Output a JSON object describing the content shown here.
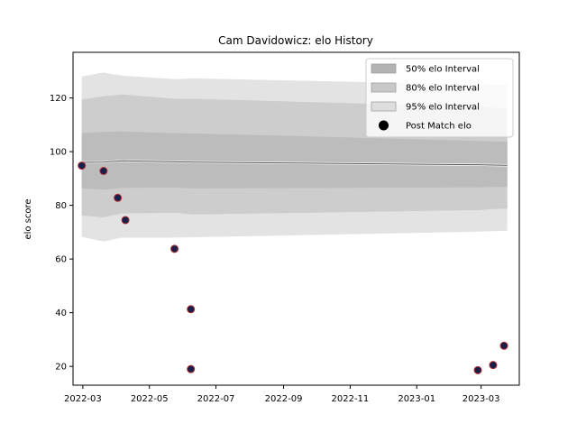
{
  "chart_data": {
    "type": "area",
    "title": "Cam Davidowicz: elo History",
    "xlabel": "",
    "ylabel": "elo score",
    "xlim": [
      "2022-02-20",
      "2023-04-05"
    ],
    "ylim": [
      13,
      137
    ],
    "grid": false,
    "legend_placement": "top-right",
    "x_ticks": [
      "2022-03",
      "2022-05",
      "2022-07",
      "2022-09",
      "2022-11",
      "2023-01",
      "2023-03"
    ],
    "y_ticks": [
      20,
      40,
      60,
      80,
      100,
      120
    ],
    "interval_x": [
      "2022-02-28",
      "2022-03-20",
      "2022-04-06",
      "2022-05-25",
      "2022-06-10",
      "2023-02-26",
      "2023-03-12",
      "2023-03-25"
    ],
    "series": [
      {
        "name": "95% elo Interval",
        "kind": "band",
        "color": "#e3e3e3",
        "lower": [
          68.3,
          66.5,
          68.0,
          68.0,
          68.1,
          70.2,
          70.4,
          70.5
        ],
        "upper": [
          128.0,
          129.5,
          128.3,
          127.0,
          127.3,
          125.0,
          124.9,
          124.9
        ]
      },
      {
        "name": "80% elo Interval",
        "kind": "band",
        "color": "#cdcdcd",
        "lower": [
          76.2,
          75.5,
          77.0,
          77.2,
          76.6,
          78.2,
          78.6,
          78.8
        ],
        "upper": [
          119.5,
          120.6,
          121.3,
          119.7,
          119.7,
          116.7,
          116.4,
          116.0
        ]
      },
      {
        "name": "50% elo Interval",
        "kind": "band",
        "color": "#bcbcbc",
        "lower": [
          86.3,
          85.8,
          86.5,
          86.6,
          86.3,
          86.7,
          86.8,
          86.9
        ],
        "upper": [
          106.9,
          107.4,
          107.5,
          106.9,
          106.8,
          104.0,
          103.8,
          103.7
        ]
      },
      {
        "name": "",
        "kind": "mean-line",
        "color": "#555555",
        "values": [
          96.0,
          96.1,
          96.6,
          96.2,
          96.1,
          95.1,
          95.0,
          94.9
        ]
      },
      {
        "name": "Post Match elo",
        "kind": "scatter",
        "color": "#1a1f4a",
        "edge_color": "#b03030",
        "points": [
          {
            "x": "2022-02-28",
            "y": 94.8
          },
          {
            "x": "2022-03-20",
            "y": 92.8
          },
          {
            "x": "2022-04-02",
            "y": 82.8
          },
          {
            "x": "2022-04-09",
            "y": 74.5
          },
          {
            "x": "2022-05-24",
            "y": 63.8
          },
          {
            "x": "2022-06-08",
            "y": 41.3
          },
          {
            "x": "2022-06-08",
            "y": 19.0
          },
          {
            "x": "2023-02-26",
            "y": 18.6
          },
          {
            "x": "2023-03-12",
            "y": 20.5
          },
          {
            "x": "2023-03-22",
            "y": 27.7
          }
        ]
      }
    ],
    "legend": [
      {
        "label": "50% elo Interval",
        "swatch": "band",
        "color": "#b3b3b3"
      },
      {
        "label": "80% elo Interval",
        "swatch": "band",
        "color": "#c9c9c9"
      },
      {
        "label": "95% elo Interval",
        "swatch": "band",
        "color": "#dedede"
      },
      {
        "label": "Post Match elo",
        "swatch": "dot",
        "color": "#000000"
      }
    ]
  }
}
